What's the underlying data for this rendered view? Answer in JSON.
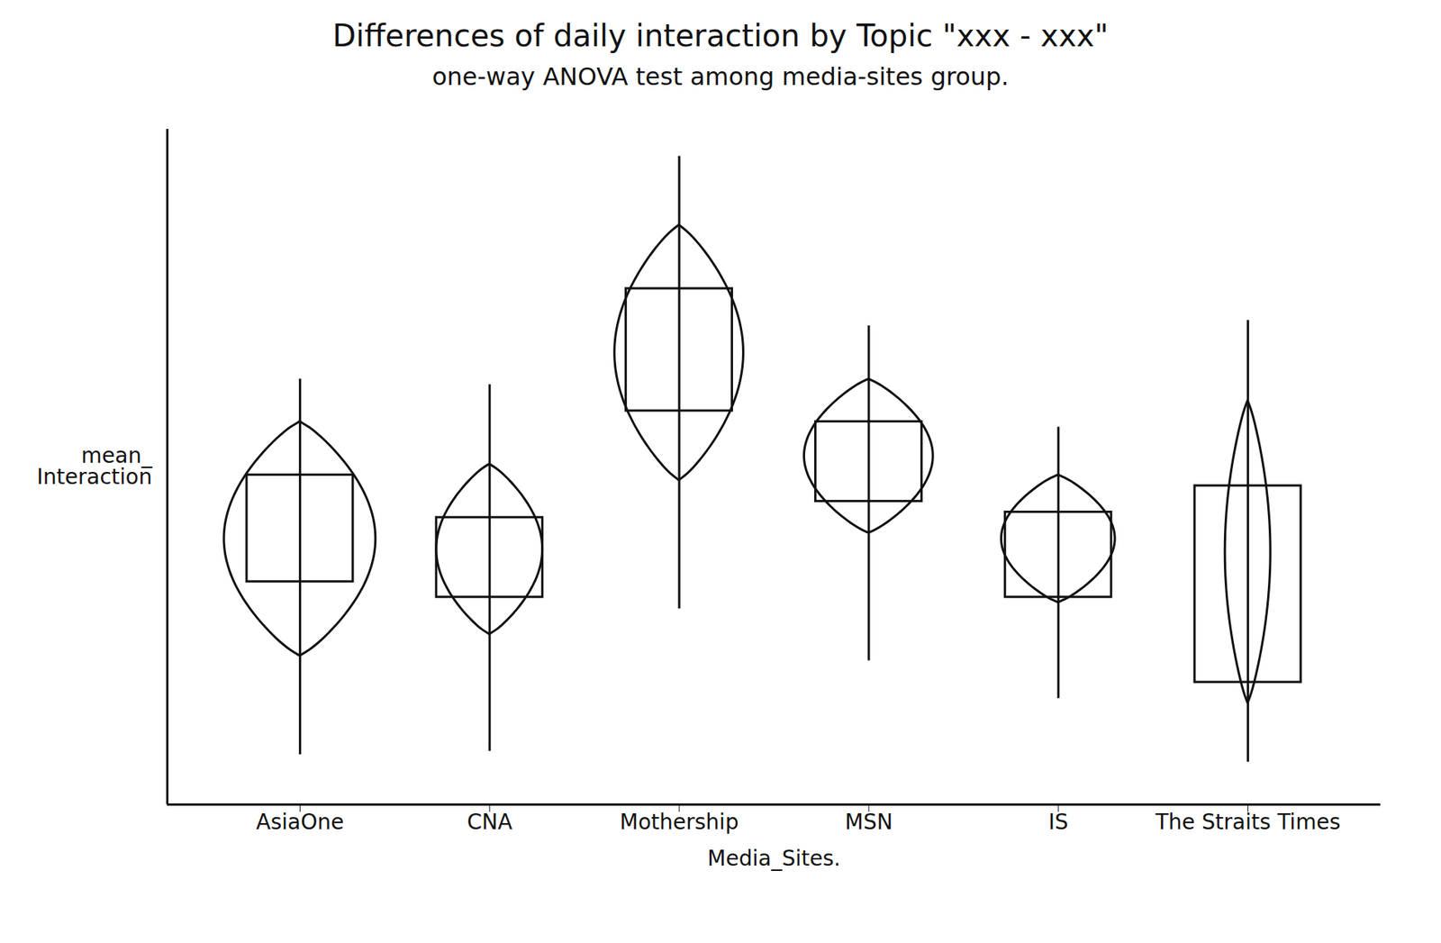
{
  "chart_data": {
    "type": "violin",
    "title": "Differences of daily interaction by Topic \"xxx - xxx\"",
    "subtitle": "one-way ANOVA test among media-sites group.",
    "x_label": "Media_Sites.",
    "y_label": "mean_ Interaction",
    "categories": [
      "AsiaOne",
      "CNA",
      "Mothership",
      "MSN",
      "IS",
      "The Straits Times"
    ],
    "whisker_low": [
      7.4,
      7.9,
      29,
      21.3,
      15.7,
      6.3
    ],
    "whisker_high": [
      63,
      62.2,
      96,
      70.9,
      55.9,
      71.7
    ],
    "q1": [
      33,
      30.7,
      58.3,
      44.9,
      30.7,
      18.1
    ],
    "q3": [
      48.8,
      42.5,
      76.4,
      56.7,
      43.3,
      47.2
    ],
    "violin_low": [
      22,
      25.2,
      48,
      40.2,
      29.9,
      15
    ],
    "violin_high": [
      56.7,
      50.4,
      85.8,
      63,
      48.8,
      59.8
    ],
    "violin_widths": [
      1,
      0.7,
      0.85,
      0.85,
      0.75,
      0.3
    ],
    "ylim": [
      0,
      100
    ],
    "tick_labels": "x",
    "grid": false,
    "color": "#111111"
  }
}
